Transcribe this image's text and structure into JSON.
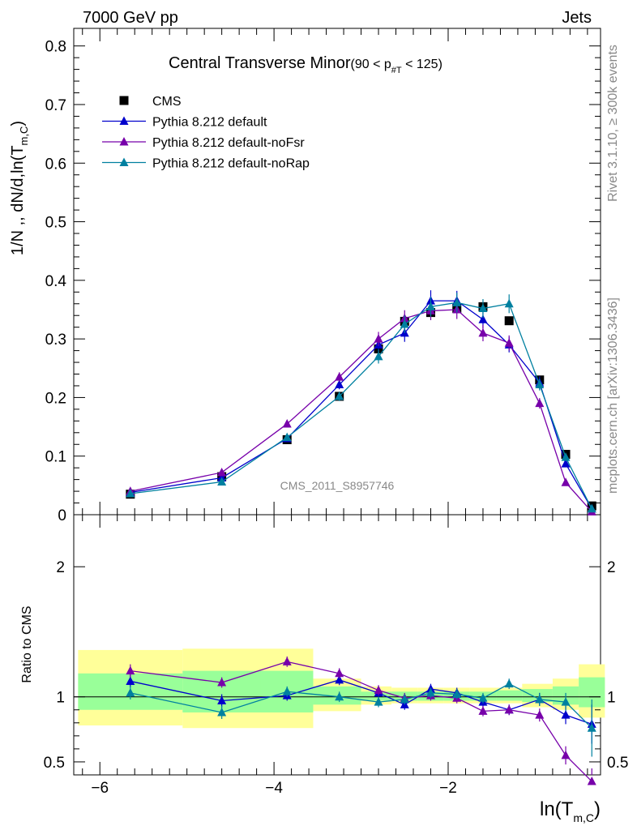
{
  "header": {
    "left": "7000 GeV pp",
    "right": "Jets"
  },
  "side": {
    "rivet": "Rivet 3.1.10, ≥ 300k events",
    "mcplots": "mcplots.cern.ch [arXiv:1306.3436]"
  },
  "watermark": "CMS_2011_S8957746",
  "chart_data": {
    "type": "line",
    "title_main": "Central Transverse Minor",
    "title_range": "(90 < p",
    "title_range_sub": "#T",
    "title_range_end": " < 125)",
    "ylabel_main": "1/N ,, dN/d,ln(T",
    "ylabel_sub": "m,C",
    "ylabel_end": ")",
    "xlabel_main": "ln(T",
    "xlabel_sub": "m,C",
    "xlabel_end": ")",
    "ratio_ylabel": "Ratio to CMS",
    "xlim": [
      -6.3,
      -0.25
    ],
    "ylim": [
      0,
      0.83
    ],
    "ratio_ylim": [
      0.4,
      2.4
    ],
    "x_ticks": [
      -6,
      -4,
      -2
    ],
    "x_tick_labels": [
      "−6",
      "−4",
      "−2"
    ],
    "y_ticks": [
      0,
      0.1,
      0.2,
      0.3,
      0.4,
      0.5,
      0.6,
      0.7,
      0.8
    ],
    "y_tick_labels": [
      "0",
      "0.1",
      "0.2",
      "0.3",
      "0.4",
      "0.5",
      "0.6",
      "0.7",
      "0.8"
    ],
    "ratio_ticks": [
      0.5,
      1,
      2
    ],
    "ratio_tick_labels": [
      "0.5",
      "1",
      "2"
    ],
    "legend_position": "top-left",
    "data_x": [
      -5.65,
      -4.6,
      -3.85,
      -3.25,
      -2.8,
      -2.5,
      -2.2,
      -1.9,
      -1.6,
      -1.3,
      -0.95,
      -0.65,
      -0.35
    ],
    "bin_edges": [
      -6.25,
      -5.05,
      -4.15,
      -3.55,
      -3.0,
      -2.65,
      -2.35,
      -2.05,
      -1.75,
      -1.45,
      -1.15,
      -0.8,
      -0.5,
      -0.2
    ],
    "band_stat": [
      [
        0.9,
        1.18
      ],
      [
        0.88,
        1.2
      ],
      [
        0.88,
        1.2
      ],
      [
        0.94,
        1.08
      ],
      [
        0.97,
        1.04
      ],
      [
        0.97,
        1.04
      ],
      [
        0.97,
        1.04
      ],
      [
        0.97,
        1.04
      ],
      [
        0.97,
        1.04
      ],
      [
        0.97,
        1.05
      ],
      [
        0.96,
        1.06
      ],
      [
        0.94,
        1.08
      ],
      [
        0.92,
        1.15
      ]
    ],
    "band_syst": [
      [
        0.78,
        1.36
      ],
      [
        0.76,
        1.37
      ],
      [
        0.76,
        1.37
      ],
      [
        0.89,
        1.14
      ],
      [
        0.94,
        1.08
      ],
      [
        0.95,
        1.07
      ],
      [
        0.95,
        1.07
      ],
      [
        0.95,
        1.07
      ],
      [
        0.95,
        1.07
      ],
      [
        0.95,
        1.07
      ],
      [
        0.92,
        1.1
      ],
      [
        0.9,
        1.14
      ],
      [
        0.84,
        1.25
      ]
    ],
    "series": [
      {
        "name": "CMS",
        "color": "#000000",
        "marker": "square",
        "values": [
          0.035,
          0.065,
          0.128,
          0.202,
          0.283,
          0.33,
          0.345,
          0.352,
          0.355,
          0.331,
          0.23,
          0.103,
          0.015
        ],
        "ratio": [
          1,
          1,
          1,
          1,
          1,
          1,
          1,
          1,
          1,
          1,
          1,
          1,
          1
        ]
      },
      {
        "name": "Pythia 8.212 default",
        "color": "#0000cc",
        "marker": "triangle",
        "values": [
          0.038,
          0.063,
          0.13,
          0.222,
          0.29,
          0.31,
          0.365,
          0.365,
          0.333,
          0.29,
          0.225,
          0.087,
          0.01
        ],
        "errors": [
          0.002,
          0.003,
          0.004,
          0.008,
          0.012,
          0.015,
          0.018,
          0.017,
          0.015,
          0.013,
          0.011,
          0.006,
          0.003
        ],
        "ratio": [
          1.12,
          0.97,
          1.01,
          1.13,
          1.03,
          0.94,
          1.06,
          1.03,
          0.96,
          0.9,
          0.98,
          0.86,
          0.79
        ],
        "ratio_errors": [
          0.05,
          0.05,
          0.04,
          0.04,
          0.04,
          0.04,
          0.04,
          0.04,
          0.04,
          0.04,
          0.05,
          0.07,
          0.15
        ]
      },
      {
        "name": "Pythia 8.212 default-noFsr",
        "color": "#7700aa",
        "marker": "triangle",
        "values": [
          0.04,
          0.072,
          0.155,
          0.235,
          0.3,
          0.335,
          0.348,
          0.35,
          0.31,
          0.293,
          0.19,
          0.055,
          0.005
        ],
        "errors": [
          0.002,
          0.003,
          0.005,
          0.008,
          0.012,
          0.014,
          0.016,
          0.016,
          0.014,
          0.013,
          0.009,
          0.005,
          0.002
        ],
        "ratio": [
          1.2,
          1.11,
          1.27,
          1.18,
          1.05,
          0.99,
          1.01,
          0.99,
          0.89,
          0.9,
          0.86,
          0.55,
          0.35
        ],
        "ratio_errors": [
          0.05,
          0.04,
          0.04,
          0.04,
          0.04,
          0.04,
          0.04,
          0.04,
          0.04,
          0.04,
          0.05,
          0.07,
          0.1
        ]
      },
      {
        "name": "Pythia 8.212 default-noRap",
        "color": "#0080a0",
        "marker": "triangle",
        "values": [
          0.036,
          0.056,
          0.132,
          0.202,
          0.27,
          0.325,
          0.355,
          0.362,
          0.352,
          0.36,
          0.222,
          0.098,
          0.01
        ],
        "errors": [
          0.002,
          0.003,
          0.005,
          0.008,
          0.012,
          0.015,
          0.017,
          0.017,
          0.016,
          0.016,
          0.01,
          0.006,
          0.003
        ],
        "ratio": [
          1.03,
          0.88,
          1.04,
          1.0,
          0.96,
          0.98,
          1.03,
          1.02,
          0.99,
          1.1,
          0.98,
          0.96,
          0.76
        ],
        "ratio_errors": [
          0.05,
          0.05,
          0.04,
          0.04,
          0.04,
          0.04,
          0.04,
          0.04,
          0.04,
          0.04,
          0.05,
          0.07,
          0.22
        ]
      }
    ]
  }
}
